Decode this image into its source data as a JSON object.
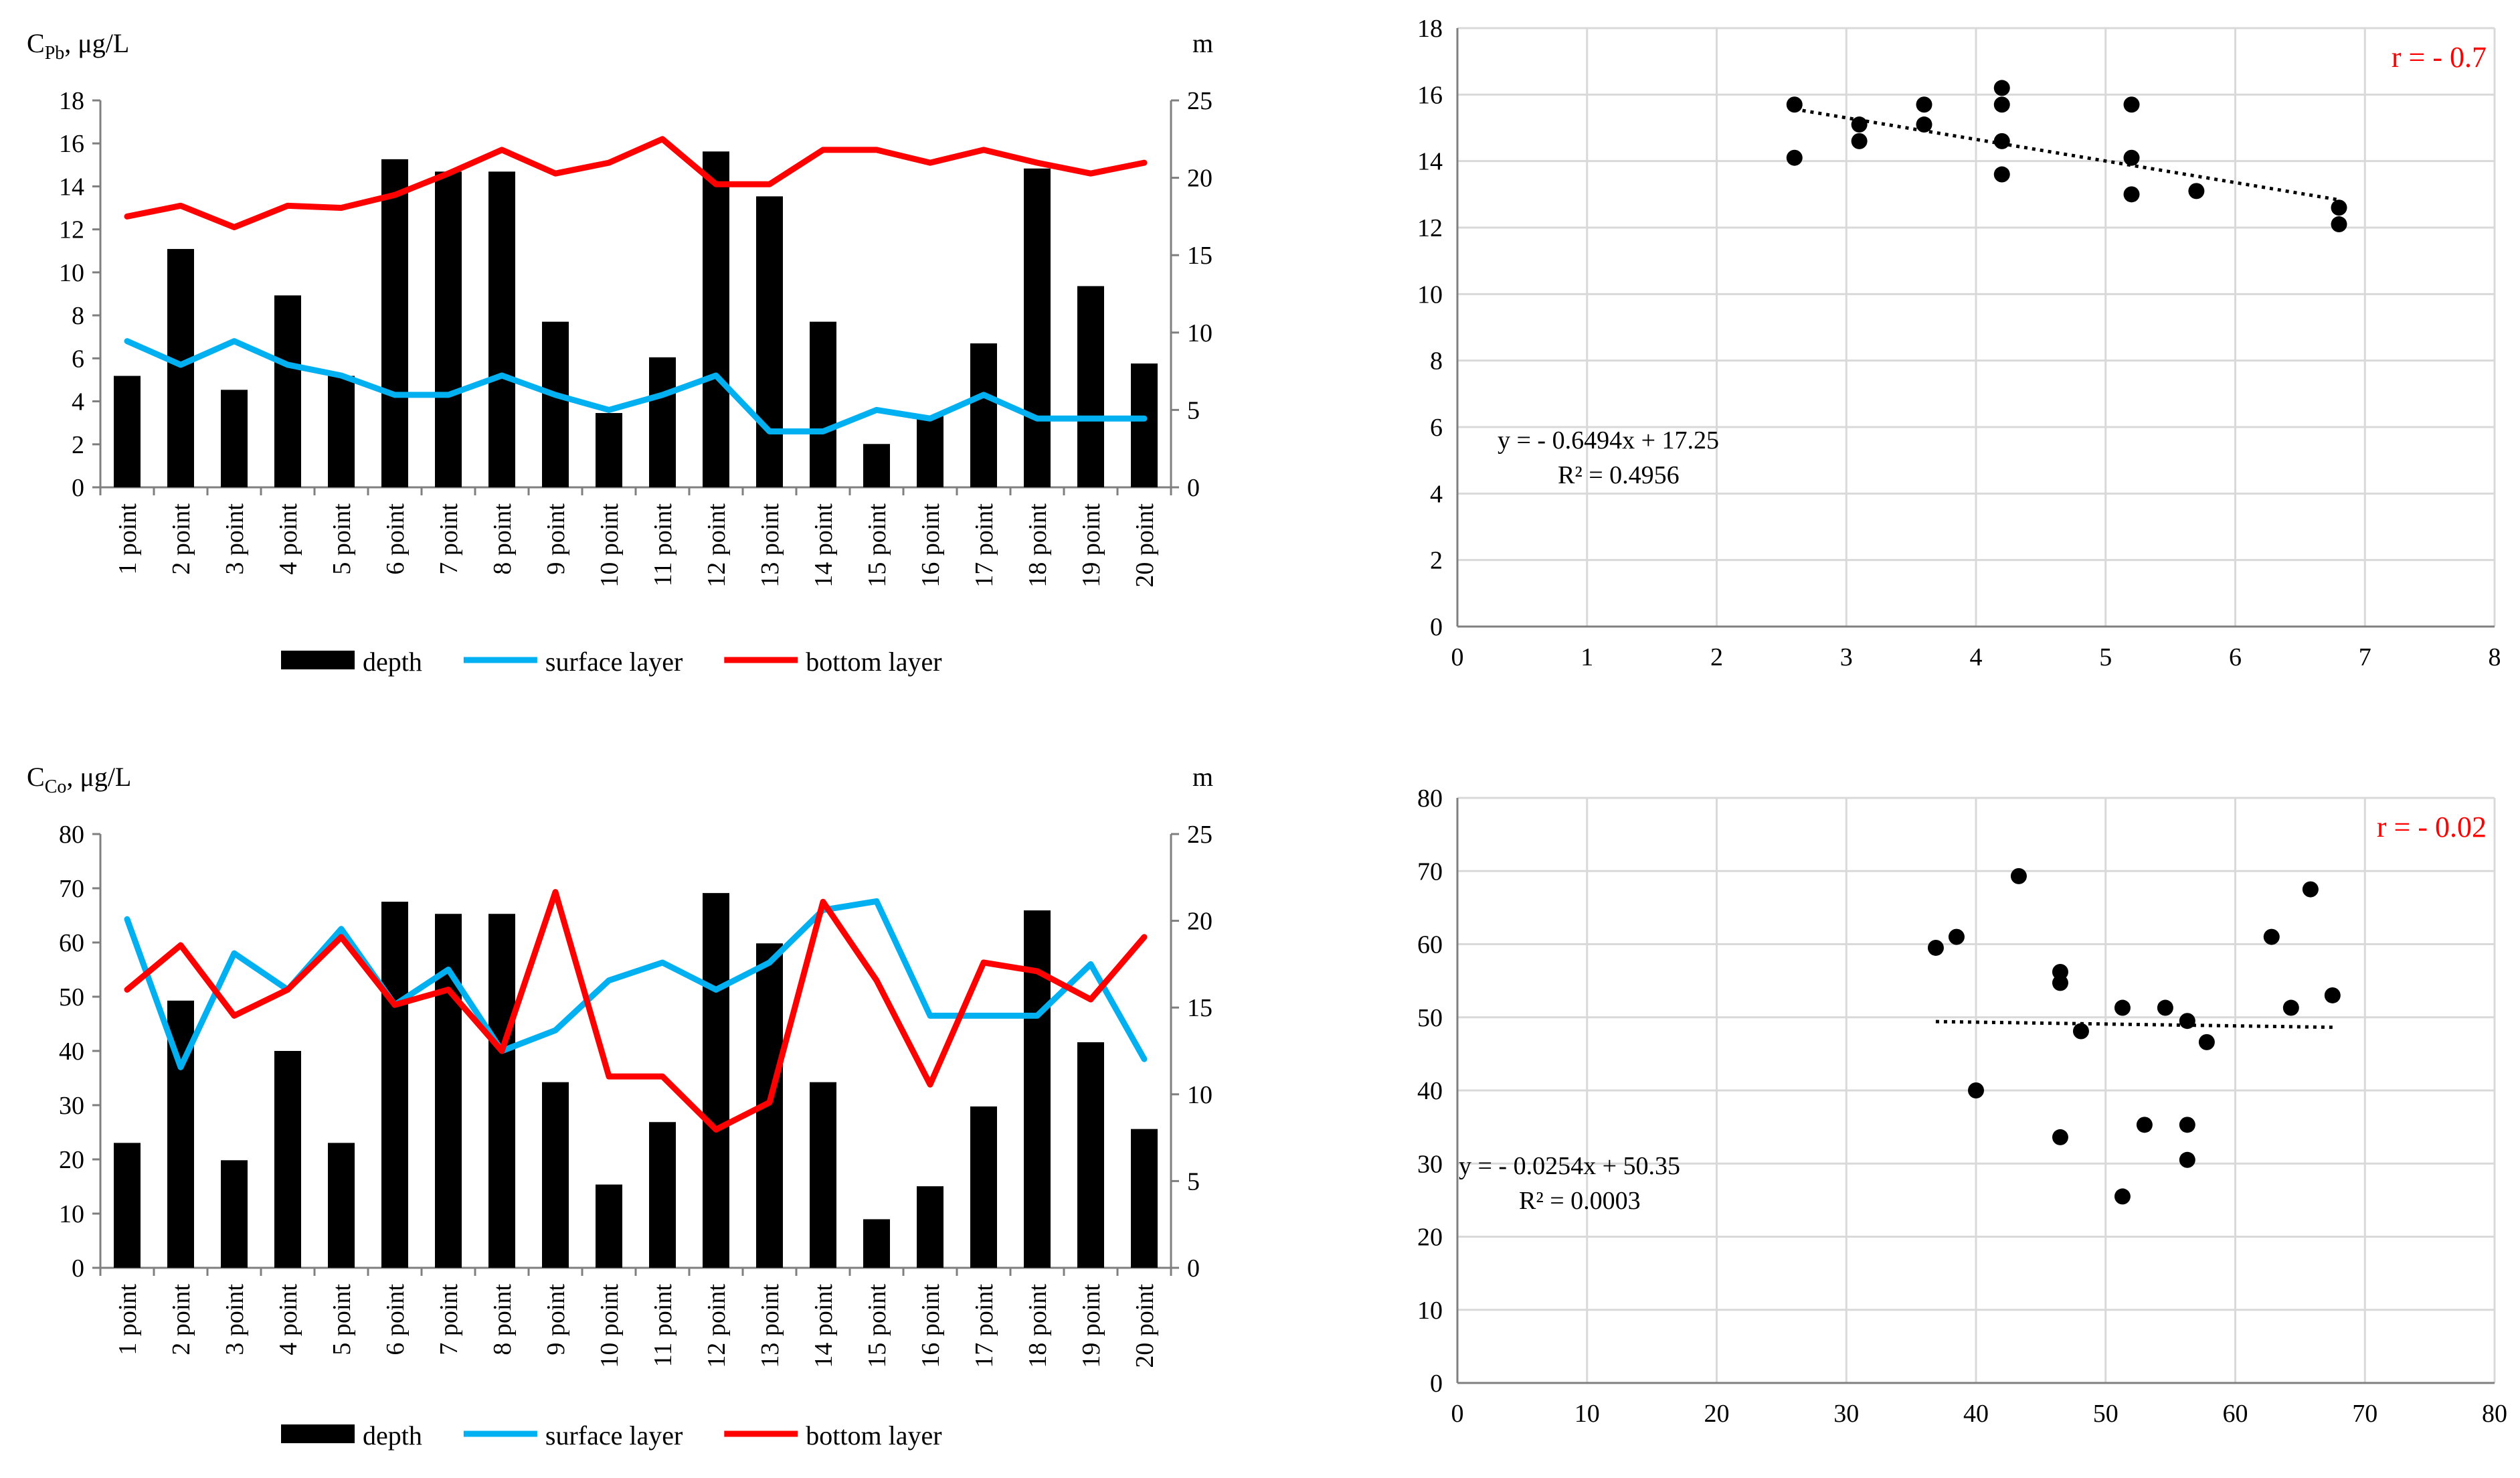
{
  "chart_data": [
    {
      "id": "pb_combo",
      "type": "bar",
      "ylabel_left_main": "C",
      "ylabel_left_sub": "Pb",
      "ylabel_left_rest": ", μg/L",
      "ylabel_right": "m",
      "categories": [
        "1 point",
        "2 point",
        "3 point",
        "4 point",
        "5 point",
        "6 point",
        "7 point",
        "8 point",
        "9 point",
        "10 point",
        "11 point",
        "12 point",
        "13 point",
        "14 point",
        "15 point",
        "16 point",
        "17 point",
        "18 point",
        "19 point",
        "20 point"
      ],
      "left_ylim": [
        0,
        18
      ],
      "left_ticks": [
        0,
        2,
        4,
        6,
        8,
        10,
        12,
        14,
        16,
        18
      ],
      "right_ylim": [
        0,
        25
      ],
      "right_ticks": [
        0,
        5,
        10,
        15,
        20,
        25
      ],
      "series": [
        {
          "name": "depth",
          "kind": "bar",
          "axis": "right",
          "color": "#000000",
          "values": [
            7.2,
            15.4,
            6.3,
            12.4,
            7.2,
            21.2,
            20.4,
            20.4,
            10.7,
            4.8,
            8.4,
            21.7,
            18.8,
            10.7,
            2.8,
            4.6,
            9.3,
            20.6,
            13.0,
            8.0
          ]
        },
        {
          "name": "surface layer",
          "kind": "line",
          "axis": "left",
          "color": "#00b0f0",
          "values": [
            6.8,
            5.7,
            6.8,
            5.7,
            5.2,
            4.3,
            4.3,
            5.2,
            4.3,
            3.6,
            4.3,
            5.2,
            2.6,
            2.6,
            3.6,
            3.2,
            4.3,
            3.2,
            3.2,
            3.2
          ]
        },
        {
          "name": "bottom layer",
          "kind": "line",
          "axis": "left",
          "color": "#ff0000",
          "values": [
            12.6,
            13.1,
            12.1,
            13.1,
            13.0,
            13.6,
            14.6,
            15.7,
            14.6,
            15.1,
            16.2,
            14.1,
            14.1,
            15.7,
            15.7,
            15.1,
            15.7,
            15.1,
            14.6,
            15.1
          ]
        }
      ],
      "legend": [
        "depth",
        "surface layer",
        "bottom layer"
      ]
    },
    {
      "id": "pb_scatter",
      "type": "scatter",
      "xlim": [
        0,
        8
      ],
      "xticks": [
        0,
        1,
        2,
        3,
        4,
        5,
        6,
        7,
        8
      ],
      "ylim": [
        0,
        18
      ],
      "yticks": [
        0,
        2,
        4,
        6,
        8,
        10,
        12,
        14,
        16,
        18
      ],
      "points": [
        [
          2.6,
          15.7
        ],
        [
          2.6,
          14.1
        ],
        [
          3.1,
          15.1
        ],
        [
          3.1,
          14.6
        ],
        [
          3.6,
          15.7
        ],
        [
          3.6,
          15.1
        ],
        [
          4.2,
          16.2
        ],
        [
          4.2,
          15.7
        ],
        [
          4.2,
          14.6
        ],
        [
          4.2,
          13.6
        ],
        [
          5.2,
          15.7
        ],
        [
          5.2,
          14.1
        ],
        [
          5.2,
          13.0
        ],
        [
          5.7,
          13.1
        ],
        [
          6.8,
          12.6
        ],
        [
          6.8,
          12.1
        ]
      ],
      "trend": {
        "slope": -0.6494,
        "intercept": 17.25,
        "x_from": 2.6,
        "x_to": 6.8
      },
      "equation": "y = - 0.6494x + 17.25",
      "r2": "R² = 0.4956",
      "r": "r = - 0.7"
    },
    {
      "id": "co_combo",
      "type": "bar",
      "ylabel_left_main": "C",
      "ylabel_left_sub": "Co",
      "ylabel_left_rest": ", μg/L",
      "ylabel_right": "m",
      "categories": [
        "1 point",
        "2 point",
        "3 point",
        "4 point",
        "5 point",
        "6 point",
        "7 point",
        "8 point",
        "9 point",
        "10 point",
        "11 point",
        "12 point",
        "13 point",
        "14 point",
        "15 point",
        "16 point",
        "17 point",
        "18 point",
        "19 point",
        "20 point"
      ],
      "left_ylim": [
        0,
        80
      ],
      "left_ticks": [
        0,
        10,
        20,
        30,
        40,
        50,
        60,
        70,
        80
      ],
      "right_ylim": [
        0,
        25
      ],
      "right_ticks": [
        0,
        5,
        10,
        15,
        20,
        25
      ],
      "series": [
        {
          "name": "depth",
          "kind": "bar",
          "axis": "right",
          "color": "#000000",
          "values": [
            7.2,
            15.4,
            6.2,
            12.5,
            7.2,
            21.1,
            20.4,
            20.4,
            10.7,
            4.8,
            8.4,
            21.6,
            18.7,
            10.7,
            2.8,
            4.7,
            9.3,
            20.6,
            13.0,
            8.0
          ]
        },
        {
          "name": "surface layer",
          "kind": "line",
          "axis": "left",
          "color": "#00b0f0",
          "values": [
            64.3,
            37.0,
            58.0,
            51.3,
            62.5,
            48.5,
            55.0,
            40.0,
            43.8,
            53.0,
            56.3,
            51.3,
            56.3,
            66.0,
            67.6,
            46.5,
            46.5,
            46.5,
            56.0,
            38.5
          ]
        },
        {
          "name": "bottom layer",
          "kind": "line",
          "axis": "left",
          "color": "#ff0000",
          "values": [
            51.3,
            59.5,
            46.5,
            51.3,
            61.0,
            48.5,
            51.3,
            40.0,
            69.3,
            35.3,
            35.3,
            25.5,
            30.5,
            67.5,
            53.0,
            33.8,
            56.3,
            54.7,
            49.5,
            61.0
          ]
        }
      ],
      "legend": [
        "depth",
        "surface layer",
        "bottom layer"
      ]
    },
    {
      "id": "co_scatter",
      "type": "scatter",
      "xlim": [
        0,
        80
      ],
      "xticks": [
        0,
        10,
        20,
        30,
        40,
        50,
        60,
        70,
        80
      ],
      "ylim": [
        0,
        80
      ],
      "yticks": [
        0,
        10,
        20,
        30,
        40,
        50,
        60,
        70,
        80
      ],
      "points": [
        [
          36.9,
          59.5
        ],
        [
          38.5,
          61.0
        ],
        [
          40.0,
          40.0
        ],
        [
          43.3,
          69.3
        ],
        [
          46.5,
          56.2
        ],
        [
          46.5,
          54.7
        ],
        [
          46.5,
          33.6
        ],
        [
          48.1,
          48.1
        ],
        [
          51.3,
          51.3
        ],
        [
          51.3,
          25.5
        ],
        [
          53.0,
          35.3
        ],
        [
          54.6,
          51.3
        ],
        [
          56.3,
          49.5
        ],
        [
          56.3,
          35.3
        ],
        [
          56.3,
          30.5
        ],
        [
          57.8,
          46.6
        ],
        [
          62.8,
          61.0
        ],
        [
          64.3,
          51.3
        ],
        [
          65.8,
          67.5
        ],
        [
          67.5,
          53.0
        ]
      ],
      "trend": {
        "slope": -0.0254,
        "intercept": 50.35,
        "x_from": 36.9,
        "x_to": 67.5
      },
      "equation": "y = - 0.0254x + 50.35",
      "r2": "R² = 0.0003",
      "r": "r = - 0.02"
    }
  ]
}
